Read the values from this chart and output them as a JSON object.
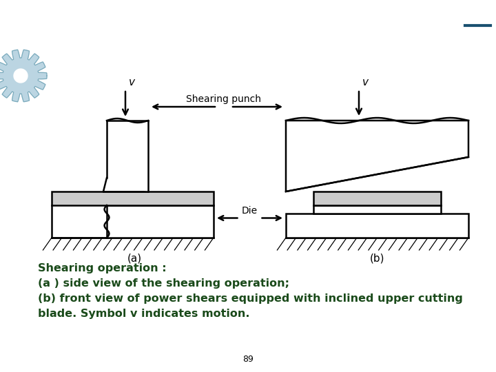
{
  "bg_color": "#ffffff",
  "line_color": "#000000",
  "gray_fill": "#cccccc",
  "text_color": "#1a4a1a",
  "title_text": "Shearing operation :",
  "line1": "(a ) side view of the shearing operation;",
  "line2": "(b) front view of power shears equipped with inclined upper cutting",
  "line3": "blade. Symbol v indicates motion.",
  "label_a": "(a)",
  "label_b": "(b)",
  "label_punch": "Shearing punch",
  "label_die": "Die",
  "page_num": "89",
  "gear_color": "#b0cedd",
  "gear_outline": "#7aaabb",
  "dash_color": "#1a5070"
}
